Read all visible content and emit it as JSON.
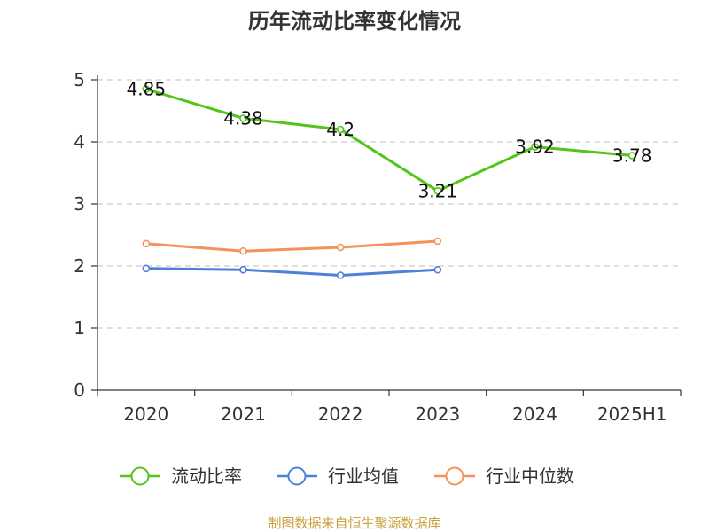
{
  "chart_data": {
    "type": "line",
    "title": "历年流动比率变化情况",
    "categories": [
      "2020",
      "2021",
      "2022",
      "2023",
      "2024",
      "2025H1"
    ],
    "ylim": [
      0,
      5
    ],
    "yticks": [
      "0",
      "1",
      "2",
      "3",
      "4",
      "5"
    ],
    "grid": true,
    "legend_position": "bottom",
    "series": [
      {
        "name": "流动比率",
        "color": "#52c41a",
        "values": [
          4.85,
          4.38,
          4.2,
          3.21,
          3.92,
          3.78
        ],
        "labels": [
          "4.85",
          "4.38",
          "4.2",
          "3.21",
          "3.92",
          "3.78"
        ]
      },
      {
        "name": "行业均值",
        "color": "#4e7fd9",
        "values": [
          1.96,
          1.94,
          1.85,
          1.94,
          null,
          null
        ]
      },
      {
        "name": "行业中位数",
        "color": "#f5915a",
        "values": [
          2.36,
          2.24,
          2.3,
          2.4,
          null,
          null
        ]
      }
    ],
    "source": "制图数据来自恒生聚源数据库",
    "source_color": "#c9a13b"
  }
}
